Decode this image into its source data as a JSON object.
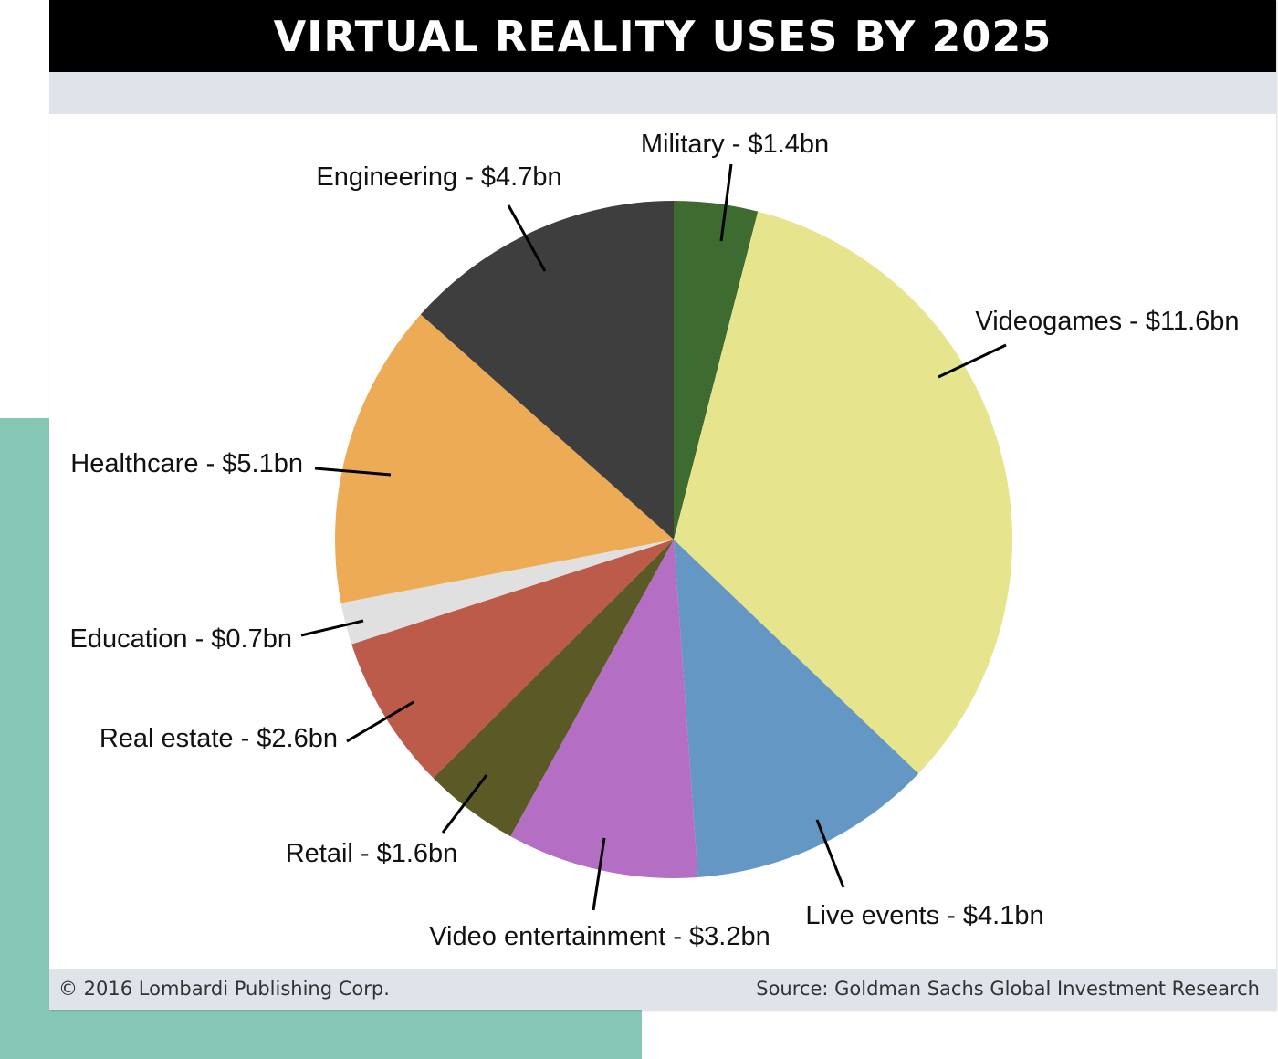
{
  "header": {
    "title": "VIRTUAL REALITY USES BY 2025"
  },
  "footer": {
    "copyright": "© 2016 Lombardi Publishing Corp.",
    "source": "Source: Goldman Sachs Global Investment Research"
  },
  "chart_data": {
    "type": "pie",
    "title": "VIRTUAL REALITY USES BY 2025",
    "unit": "bn USD",
    "start": "top",
    "direction": "clockwise",
    "slices": [
      {
        "name": "Military",
        "label": "Military - $1.4bn",
        "value": 1.4,
        "color": "#3e6b2f"
      },
      {
        "name": "Videogames",
        "label": "Videogames - $11.6bn",
        "value": 11.6,
        "color": "#e6e48c"
      },
      {
        "name": "Live events",
        "label": "Live events - $4.1bn",
        "value": 4.1,
        "color": "#6497c4"
      },
      {
        "name": "Video entertainment",
        "label": "Video entertainment - $3.2bn",
        "value": 3.2,
        "color": "#b46fc4"
      },
      {
        "name": "Retail",
        "label": "Retail - $1.6bn",
        "value": 1.6,
        "color": "#5b5a26"
      },
      {
        "name": "Real estate",
        "label": "Real estate - $2.6bn",
        "value": 2.6,
        "color": "#bd5b4a"
      },
      {
        "name": "Education",
        "label": "Education - $0.7bn",
        "value": 0.7,
        "color": "#e0e0e0"
      },
      {
        "name": "Healthcare",
        "label": "Healthcare - $5.1bn",
        "value": 5.1,
        "color": "#eeab55"
      },
      {
        "name": "Engineering",
        "label": "Engineering - $4.7bn",
        "value": 4.7,
        "color": "#3f3e3f"
      }
    ]
  }
}
